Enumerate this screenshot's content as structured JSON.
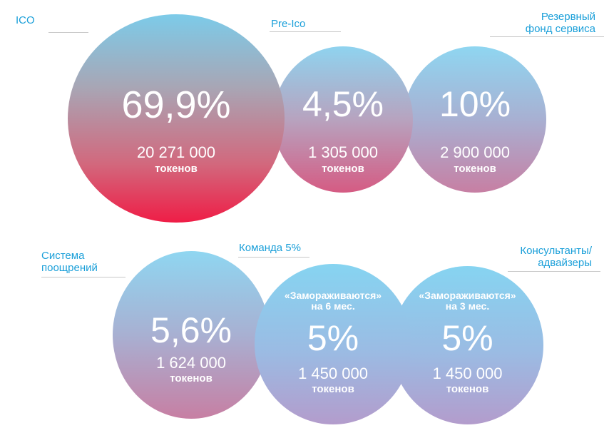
{
  "chart_data": {
    "type": "bubble",
    "unit_label": "токенов",
    "series": [
      {
        "label": "ICO",
        "percent": "69,9%",
        "tokens": "20 271 000"
      },
      {
        "label": "Pre-Ico",
        "percent": "4,5%",
        "tokens": "1 305 000"
      },
      {
        "label": "Резервный фонд сервиса",
        "label_lines": [
          "Резервный",
          "фонд сервиса"
        ],
        "percent": "10%",
        "tokens": "2 900 000"
      },
      {
        "label": "Система поощрений",
        "label_lines": [
          "Система",
          "поощрений"
        ],
        "percent": "5,6%",
        "tokens": "1 624 000"
      },
      {
        "label": "Команда 5%",
        "percent": "5%",
        "tokens": "1 450 000",
        "note_lines": [
          "«Замораживаются»",
          "на 6 мес."
        ]
      },
      {
        "label": "Консультанты/ адвайзеры",
        "label_lines": [
          "Консультанты/",
          "адвайзеры"
        ],
        "percent": "5%",
        "tokens": "1 450 000",
        "note_lines": [
          "«Замораживаются»",
          "на 3 мес."
        ]
      }
    ]
  },
  "colors": {
    "label": "#1a9fd9",
    "red_bottom": "#ef1d46",
    "top_blue": "#86d4f1"
  }
}
